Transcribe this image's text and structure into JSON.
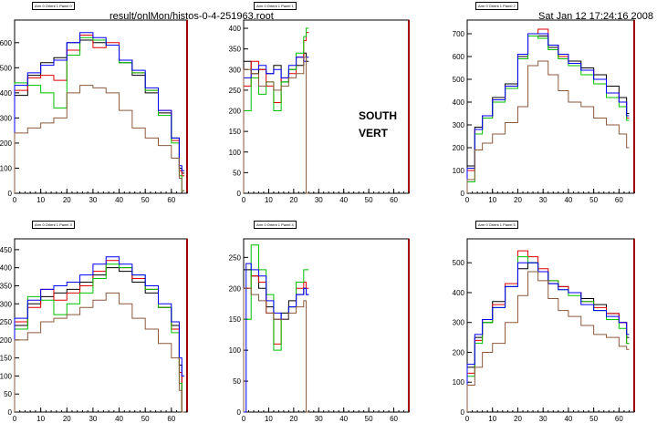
{
  "header": {
    "file_title": "result/onlMon/histos-0-4-251963.root",
    "timestamp": "Sat Jan 12 17:24:16 2008"
  },
  "annotation": {
    "line1": "SOUTH",
    "line2": "VERT"
  },
  "colors": {
    "black": "#000000",
    "red": "#e00000",
    "green": "#00c000",
    "blue": "#0000ff",
    "brown": "#8b5a3c",
    "frame_right": "#a00000"
  },
  "chart_data": [
    {
      "type": "line",
      "tab_label": "Arm 0 Orient 1 Panel 0",
      "xlim": [
        0,
        66
      ],
      "ylim": [
        0,
        690
      ],
      "xticks": [
        0,
        10,
        20,
        30,
        40,
        50,
        60
      ],
      "yticks": [
        0,
        100,
        200,
        300,
        400,
        500,
        600
      ],
      "series": [
        {
          "color": "black",
          "x": [
            0,
            5,
            10,
            15,
            20,
            25,
            30,
            35,
            40,
            45,
            50,
            55,
            60,
            63,
            64
          ],
          "y": [
            390,
            470,
            520,
            540,
            600,
            610,
            600,
            590,
            520,
            470,
            400,
            320,
            220,
            100,
            80
          ]
        },
        {
          "color": "red",
          "x": [
            0,
            5,
            10,
            15,
            20,
            25,
            30,
            35,
            40,
            45,
            50,
            55,
            60,
            63,
            64
          ],
          "y": [
            410,
            460,
            470,
            450,
            570,
            630,
            580,
            600,
            530,
            480,
            410,
            330,
            210,
            90,
            70
          ]
        },
        {
          "color": "green",
          "x": [
            0,
            5,
            10,
            15,
            20,
            25,
            30,
            35,
            40,
            45,
            50,
            55,
            60,
            63,
            64
          ],
          "y": [
            440,
            430,
            400,
            340,
            550,
            620,
            610,
            590,
            520,
            480,
            410,
            310,
            200,
            70,
            10
          ]
        },
        {
          "color": "blue",
          "x": [
            0,
            5,
            10,
            15,
            20,
            25,
            30,
            35,
            40,
            45,
            50,
            55,
            60,
            63,
            64
          ],
          "y": [
            430,
            480,
            510,
            530,
            600,
            640,
            620,
            590,
            530,
            490,
            420,
            330,
            220,
            110,
            90
          ]
        },
        {
          "color": "brown",
          "x": [
            0,
            5,
            10,
            15,
            20,
            25,
            30,
            35,
            40,
            45,
            50,
            55,
            60,
            63,
            64
          ],
          "y": [
            240,
            260,
            280,
            300,
            400,
            430,
            420,
            400,
            330,
            260,
            220,
            190,
            140,
            60,
            10
          ]
        }
      ]
    },
    {
      "type": "line",
      "tab_label": "Arm 0 Orient 1 Panel 1",
      "xlim": [
        0,
        66
      ],
      "ylim": [
        0,
        420
      ],
      "xticks": [
        0,
        10,
        20,
        30,
        40,
        50,
        60
      ],
      "yticks": [
        0,
        50,
        100,
        150,
        200,
        250,
        300,
        350,
        400
      ],
      "series": [
        {
          "color": "black",
          "x": [
            0,
            3,
            6,
            9,
            12,
            15,
            18,
            21,
            24,
            25
          ],
          "y": [
            320,
            290,
            300,
            290,
            310,
            270,
            300,
            310,
            340,
            320
          ]
        },
        {
          "color": "red",
          "x": [
            0,
            3,
            6,
            9,
            12,
            15,
            18,
            21,
            24,
            25
          ],
          "y": [
            260,
            320,
            300,
            260,
            220,
            280,
            290,
            330,
            370,
            390
          ]
        },
        {
          "color": "green",
          "x": [
            0,
            3,
            6,
            9,
            12,
            15,
            18,
            21,
            24,
            25
          ],
          "y": [
            200,
            280,
            240,
            270,
            200,
            270,
            300,
            340,
            380,
            400
          ]
        },
        {
          "color": "blue",
          "x": [
            0,
            3,
            6,
            9,
            12,
            15,
            18,
            21,
            24,
            25
          ],
          "y": [
            280,
            300,
            310,
            290,
            300,
            280,
            310,
            330,
            320,
            330
          ]
        },
        {
          "color": "brown",
          "x": [
            0,
            3,
            6,
            9,
            12,
            15,
            18,
            21,
            24,
            25
          ],
          "y": [
            300,
            290,
            260,
            270,
            250,
            260,
            280,
            290,
            330,
            0
          ]
        }
      ]
    },
    {
      "type": "line",
      "tab_label": "Arm 0 Orient 1 Panel 2",
      "xlim": [
        0,
        66
      ],
      "ylim": [
        0,
        760
      ],
      "xticks": [
        0,
        10,
        20,
        30,
        40,
        50,
        60
      ],
      "yticks": [
        0,
        100,
        200,
        300,
        400,
        500,
        600,
        700
      ],
      "series": [
        {
          "color": "black",
          "x": [
            0,
            3,
            6,
            10,
            15,
            20,
            24,
            28,
            32,
            36,
            40,
            45,
            50,
            55,
            60,
            63
          ],
          "y": [
            120,
            290,
            340,
            420,
            480,
            600,
            690,
            690,
            640,
            600,
            580,
            550,
            520,
            470,
            420,
            350
          ]
        },
        {
          "color": "red",
          "x": [
            0,
            3,
            6,
            10,
            15,
            20,
            24,
            28,
            32,
            36,
            40,
            45,
            50,
            55,
            60,
            63
          ],
          "y": [
            100,
            280,
            330,
            410,
            470,
            610,
            700,
            720,
            650,
            600,
            570,
            540,
            500,
            440,
            400,
            330
          ]
        },
        {
          "color": "green",
          "x": [
            0,
            3,
            6,
            10,
            15,
            20,
            24,
            28,
            32,
            36,
            40,
            45,
            50,
            55,
            60,
            63
          ],
          "y": [
            50,
            260,
            330,
            400,
            460,
            590,
            690,
            680,
            630,
            590,
            560,
            520,
            480,
            420,
            380,
            320
          ]
        },
        {
          "color": "blue",
          "x": [
            0,
            3,
            6,
            10,
            15,
            20,
            24,
            28,
            32,
            36,
            40,
            45,
            50,
            55,
            60,
            63
          ],
          "y": [
            110,
            280,
            340,
            410,
            470,
            610,
            700,
            700,
            650,
            610,
            570,
            540,
            500,
            440,
            400,
            340
          ]
        },
        {
          "color": "brown",
          "x": [
            0,
            3,
            6,
            10,
            15,
            20,
            24,
            28,
            32,
            36,
            40,
            45,
            50,
            55,
            60,
            63
          ],
          "y": [
            60,
            190,
            220,
            260,
            310,
            380,
            560,
            580,
            520,
            450,
            400,
            380,
            330,
            300,
            260,
            200
          ]
        }
      ]
    },
    {
      "type": "line",
      "tab_label": "Arm 0 Orient 1 Panel 3",
      "xlim": [
        0,
        66
      ],
      "ylim": [
        0,
        480
      ],
      "xticks": [
        0,
        10,
        20,
        30,
        40,
        50,
        60
      ],
      "yticks": [
        0,
        50,
        100,
        150,
        200,
        250,
        300,
        350,
        400,
        450
      ],
      "series": [
        {
          "color": "black",
          "x": [
            0,
            5,
            10,
            15,
            20,
            25,
            30,
            35,
            40,
            45,
            50,
            55,
            60,
            63,
            64
          ],
          "y": [
            240,
            300,
            320,
            330,
            340,
            360,
            380,
            400,
            390,
            360,
            330,
            290,
            240,
            130,
            0
          ]
        },
        {
          "color": "red",
          "x": [
            0,
            5,
            10,
            15,
            20,
            25,
            30,
            35,
            40,
            45,
            50,
            55,
            60,
            63,
            64
          ],
          "y": [
            250,
            290,
            340,
            310,
            330,
            350,
            390,
            420,
            400,
            370,
            340,
            290,
            230,
            110,
            0
          ]
        },
        {
          "color": "green",
          "x": [
            0,
            5,
            10,
            15,
            20,
            25,
            30,
            35,
            40,
            45,
            50,
            55,
            60,
            63,
            64
          ],
          "y": [
            230,
            320,
            310,
            270,
            300,
            330,
            370,
            410,
            400,
            380,
            340,
            290,
            220,
            80,
            0
          ]
        },
        {
          "color": "blue",
          "x": [
            0,
            5,
            10,
            15,
            20,
            25,
            30,
            35,
            40,
            45,
            50,
            55,
            60,
            63,
            64
          ],
          "y": [
            260,
            310,
            340,
            350,
            360,
            380,
            410,
            430,
            410,
            380,
            350,
            300,
            250,
            150,
            100
          ]
        },
        {
          "color": "brown",
          "x": [
            0,
            5,
            10,
            15,
            20,
            25,
            30,
            35,
            40,
            45,
            50,
            55,
            60,
            63,
            64
          ],
          "y": [
            200,
            220,
            250,
            260,
            270,
            290,
            310,
            330,
            300,
            260,
            230,
            190,
            150,
            60,
            0
          ]
        }
      ]
    },
    {
      "type": "line",
      "tab_label": "Arm 0 Orient 1 Panel 4",
      "xlim": [
        0,
        66
      ],
      "ylim": [
        0,
        280
      ],
      "xticks": [
        0,
        10,
        20,
        30,
        40,
        50,
        60
      ],
      "yticks": [
        0,
        50,
        100,
        150,
        200,
        250
      ],
      "series": [
        {
          "color": "black",
          "x": [
            0,
            3,
            6,
            9,
            12,
            15,
            18,
            21,
            24,
            25
          ],
          "y": [
            230,
            220,
            200,
            170,
            150,
            160,
            180,
            190,
            200,
            190
          ]
        },
        {
          "color": "red",
          "x": [
            0,
            3,
            6,
            9,
            12,
            15,
            18,
            21,
            24,
            25
          ],
          "y": [
            200,
            220,
            210,
            160,
            110,
            150,
            170,
            200,
            210,
            200
          ]
        },
        {
          "color": "green",
          "x": [
            0,
            3,
            6,
            9,
            12,
            15,
            18,
            21,
            24,
            25
          ],
          "y": [
            150,
            270,
            230,
            190,
            100,
            150,
            170,
            210,
            230,
            230
          ]
        },
        {
          "color": "blue",
          "x": [
            0,
            1,
            3,
            6,
            9,
            12,
            15,
            18,
            21,
            24,
            25
          ],
          "y": [
            0,
            240,
            230,
            220,
            180,
            160,
            150,
            170,
            190,
            200,
            190
          ]
        },
        {
          "color": "brown",
          "x": [
            0,
            3,
            6,
            9,
            12,
            15,
            18,
            21,
            24,
            25
          ],
          "y": [
            200,
            190,
            180,
            160,
            150,
            150,
            160,
            170,
            180,
            0
          ]
        }
      ]
    },
    {
      "type": "line",
      "tab_label": "Arm 0 Orient 1 Panel 5",
      "xlim": [
        0,
        66
      ],
      "ylim": [
        0,
        580
      ],
      "xticks": [
        0,
        10,
        20,
        30,
        40,
        50,
        60
      ],
      "yticks": [
        0,
        100,
        200,
        300,
        400,
        500
      ],
      "series": [
        {
          "color": "black",
          "x": [
            0,
            3,
            6,
            10,
            15,
            20,
            24,
            28,
            32,
            36,
            40,
            45,
            50,
            55,
            60,
            63
          ],
          "y": [
            150,
            250,
            300,
            370,
            420,
            480,
            500,
            470,
            430,
            420,
            400,
            380,
            360,
            330,
            300,
            250
          ]
        },
        {
          "color": "red",
          "x": [
            0,
            3,
            6,
            10,
            15,
            20,
            24,
            28,
            32,
            36,
            40,
            45,
            50,
            55,
            60,
            63
          ],
          "y": [
            130,
            240,
            310,
            360,
            430,
            540,
            520,
            480,
            440,
            420,
            400,
            370,
            350,
            330,
            300,
            230
          ]
        },
        {
          "color": "green",
          "x": [
            0,
            3,
            6,
            10,
            15,
            20,
            24,
            28,
            32,
            36,
            40,
            45,
            50,
            55,
            60,
            63
          ],
          "y": [
            120,
            230,
            300,
            350,
            420,
            520,
            500,
            470,
            440,
            410,
            390,
            370,
            340,
            310,
            280,
            230
          ]
        },
        {
          "color": "blue",
          "x": [
            0,
            3,
            6,
            10,
            15,
            20,
            24,
            28,
            32,
            36,
            40,
            45,
            50,
            55,
            60,
            63
          ],
          "y": [
            160,
            260,
            310,
            350,
            420,
            500,
            500,
            470,
            430,
            410,
            400,
            360,
            340,
            320,
            300,
            260
          ]
        },
        {
          "color": "brown",
          "x": [
            0,
            3,
            6,
            10,
            15,
            20,
            24,
            28,
            32,
            36,
            40,
            45,
            50,
            55,
            60,
            63
          ],
          "y": [
            90,
            150,
            200,
            230,
            300,
            390,
            470,
            440,
            380,
            340,
            320,
            290,
            260,
            250,
            220,
            210
          ]
        }
      ]
    }
  ]
}
